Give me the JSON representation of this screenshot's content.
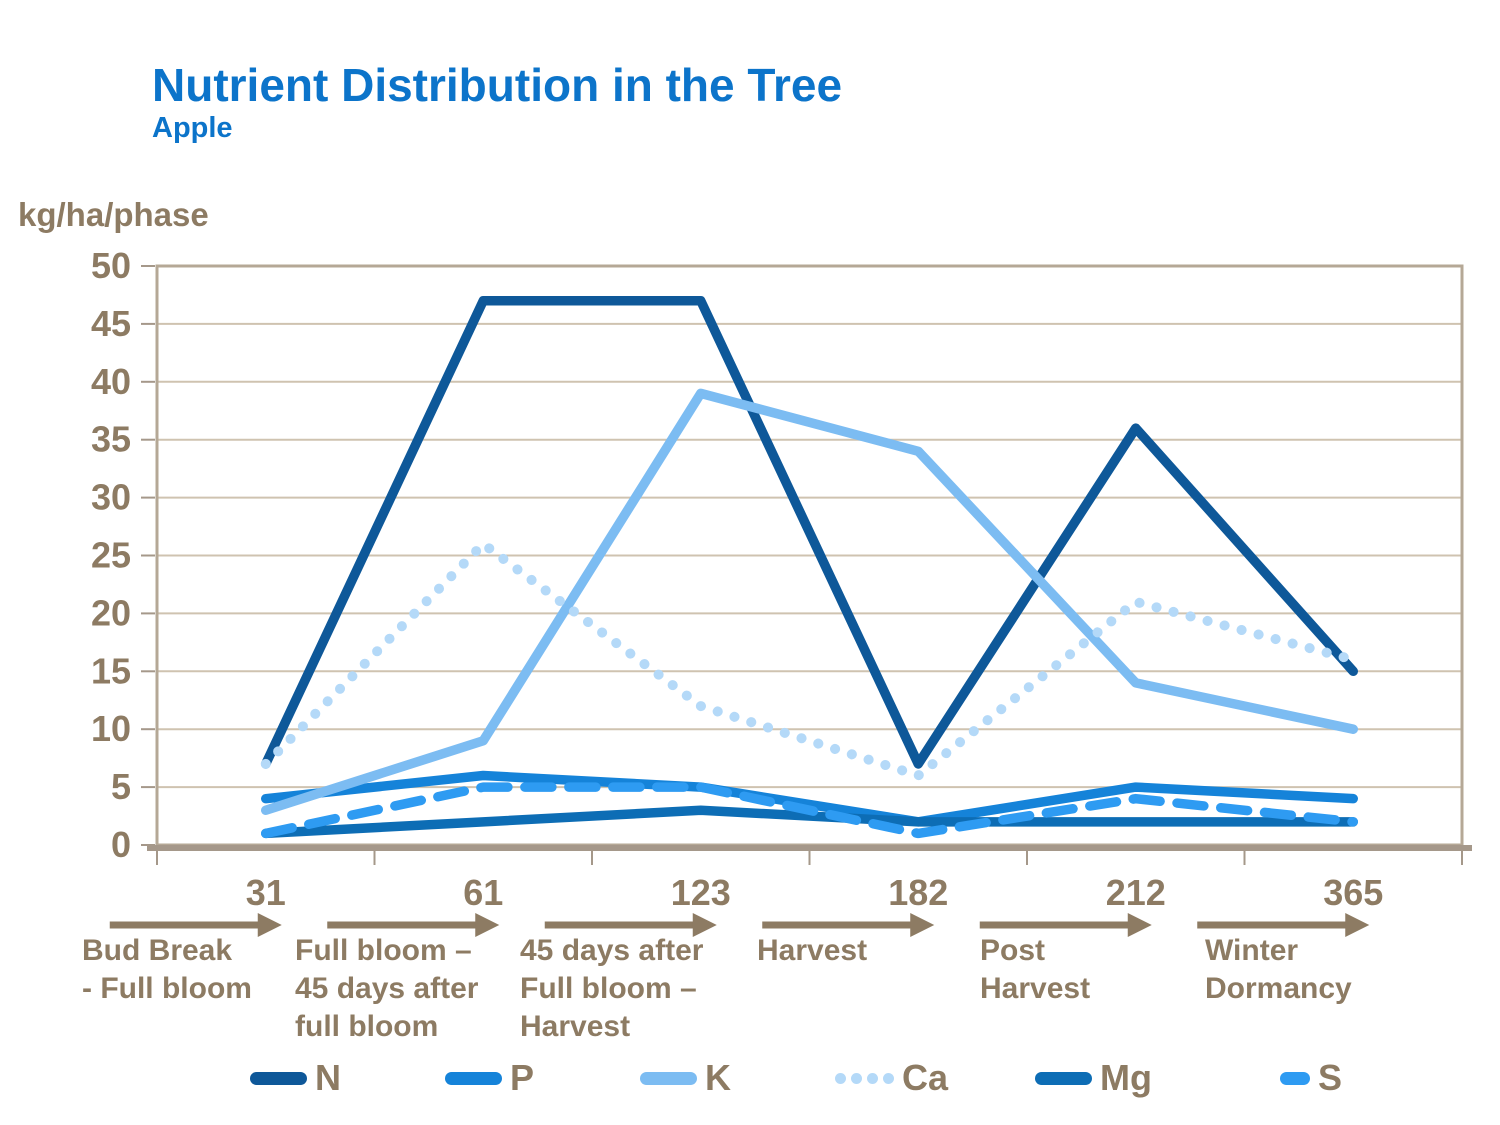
{
  "title": "Nutrient Distribution in the Tree",
  "subtitle": "Apple",
  "y_axis_unit": "kg/ha/phase",
  "colors": {
    "title_blue": "#0C74CA",
    "text_brown": "#8D7B63",
    "grid": "#CFC3B0",
    "frame": "#B5A896",
    "axis": "#A5988A"
  },
  "chart_data": {
    "type": "line",
    "x": [
      31,
      61,
      123,
      182,
      212,
      365
    ],
    "x_tick_labels": [
      "31",
      "61",
      "123",
      "182",
      "212",
      "365"
    ],
    "y_tick_labels": [
      "0",
      "5",
      "10",
      "15",
      "20",
      "25",
      "30",
      "35",
      "40",
      "45",
      "50"
    ],
    "ylim": [
      0,
      50
    ],
    "ytick_step": 5,
    "grid": true,
    "legend_position": "bottom",
    "phases": [
      {
        "lines": [
          "Bud Break",
          "- Full bloom"
        ]
      },
      {
        "lines": [
          "Full bloom –",
          "45 days after",
          "full bloom"
        ]
      },
      {
        "lines": [
          "45 days after",
          "Full bloom –",
          "Harvest"
        ]
      },
      {
        "lines": [
          "Harvest"
        ]
      },
      {
        "lines": [
          "Post",
          "Harvest"
        ]
      },
      {
        "lines": [
          "Winter",
          "Dormancy"
        ]
      }
    ],
    "series": [
      {
        "name": "N",
        "style": "solid",
        "color": "#0E5899",
        "values": [
          7,
          47,
          47,
          7,
          36,
          15
        ]
      },
      {
        "name": "P",
        "style": "solid",
        "color": "#1583D9",
        "values": [
          4,
          6,
          5,
          2,
          5,
          4
        ]
      },
      {
        "name": "K",
        "style": "solid",
        "color": "#7CBCF2",
        "values": [
          3,
          9,
          39,
          34,
          14,
          10
        ]
      },
      {
        "name": "Ca",
        "style": "dotted",
        "color": "#B4D9F8",
        "values": [
          7,
          26,
          12,
          6,
          21,
          16
        ]
      },
      {
        "name": "Mg",
        "style": "solid",
        "color": "#0D6DB5",
        "values": [
          1,
          2,
          3,
          2,
          2,
          2
        ]
      },
      {
        "name": "S",
        "style": "dashed",
        "color": "#2E9BF2",
        "values": [
          1,
          5,
          5,
          1,
          4,
          2
        ]
      }
    ]
  }
}
